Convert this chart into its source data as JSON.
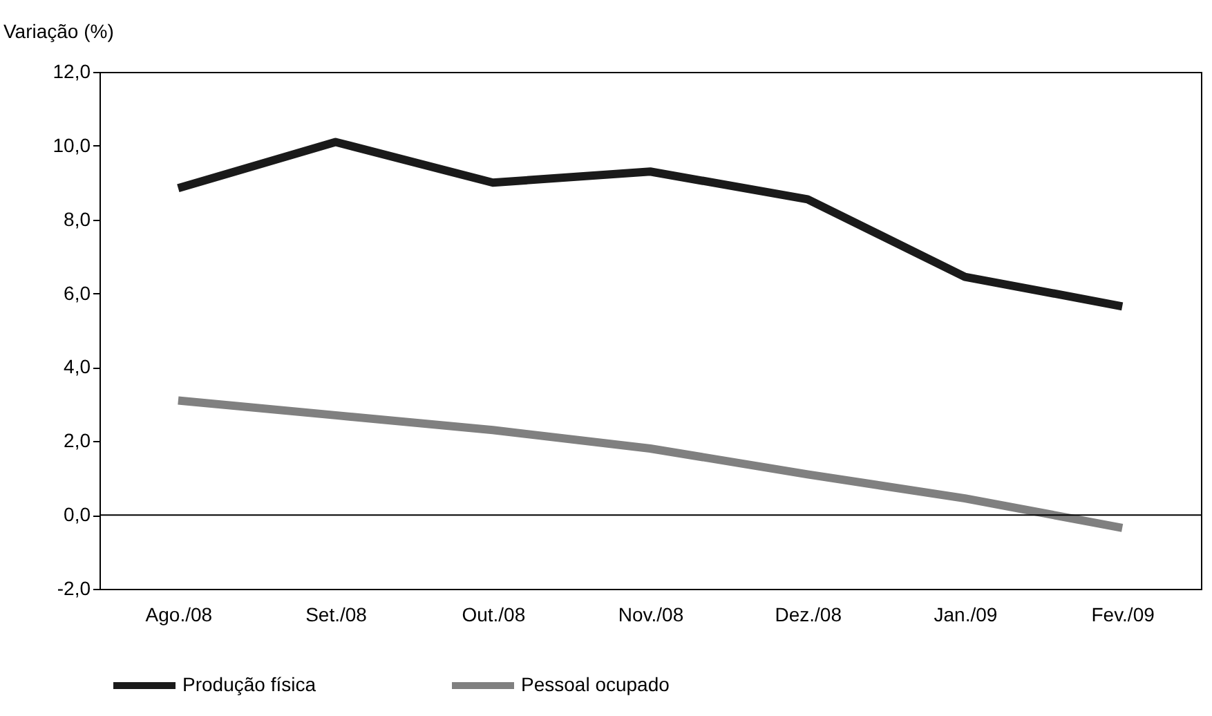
{
  "chart_data": {
    "type": "line",
    "ylabel": "Variação (%)",
    "categories": [
      "Ago./08",
      "Set./08",
      "Out./08",
      "Nov./08",
      "Dez./08",
      "Jan./09",
      "Fev./09"
    ],
    "series": [
      {
        "name": "Produção física",
        "color": "#1a1a1a",
        "values": [
          8.85,
          10.1,
          9.0,
          9.3,
          8.55,
          6.45,
          5.65
        ]
      },
      {
        "name": "Pessoal ocupado",
        "color": "#808080",
        "values": [
          3.1,
          2.7,
          2.3,
          1.8,
          1.1,
          0.45,
          -0.35
        ]
      }
    ],
    "ylim": [
      -2,
      12
    ],
    "yticks": [
      {
        "value": -2,
        "label": "-2,0"
      },
      {
        "value": 0,
        "label": "0,0"
      },
      {
        "value": 2,
        "label": "2,0"
      },
      {
        "value": 4,
        "label": "4,0"
      },
      {
        "value": 6,
        "label": "6,0"
      },
      {
        "value": 8,
        "label": "8,0"
      },
      {
        "value": 10,
        "label": "10,0"
      },
      {
        "value": 12,
        "label": "12,0"
      }
    ],
    "ref_lines": [
      {
        "axis": "y",
        "value": 0,
        "color": "#000000"
      }
    ],
    "grid": false,
    "legend": "bottom",
    "line_style": "solid",
    "marker": "none"
  }
}
